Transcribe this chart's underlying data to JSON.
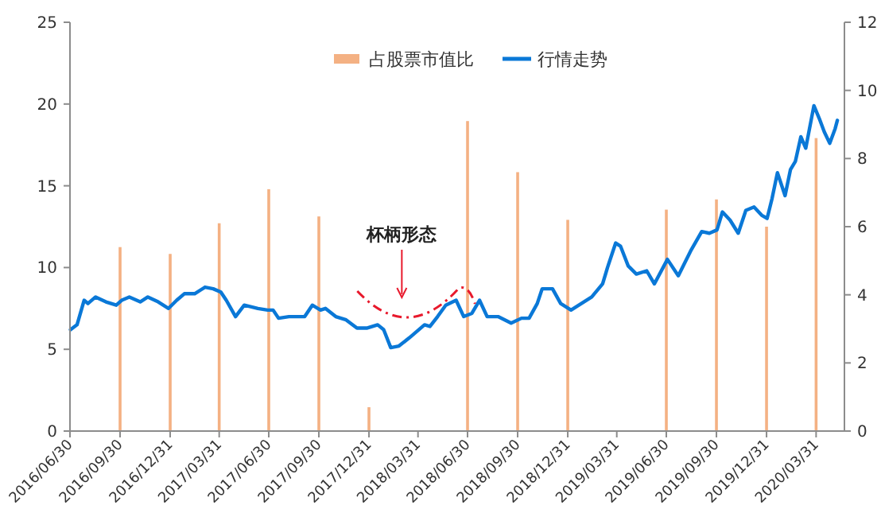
{
  "chart_data": {
    "type": "bar",
    "legend": "top",
    "grid": false,
    "xlim": [
      "2016-06-30",
      "2020-05-22"
    ],
    "xticks": [
      {
        "value": "2016-06-30",
        "label": "2016/06/30"
      },
      {
        "value": "2016-09-30",
        "label": "2016/09/30"
      },
      {
        "value": "2016-12-31",
        "label": "2016/12/31"
      },
      {
        "value": "2017-03-31",
        "label": "2017/03/31"
      },
      {
        "value": "2017-06-30",
        "label": "2017/06/30"
      },
      {
        "value": "2017-09-30",
        "label": "2017/09/30"
      },
      {
        "value": "2017-12-31",
        "label": "2017/12/31"
      },
      {
        "value": "2018-03-31",
        "label": "2018/03/31"
      },
      {
        "value": "2018-06-30",
        "label": "2018/06/30"
      },
      {
        "value": "2018-09-30",
        "label": "2018/09/30"
      },
      {
        "value": "2018-12-31",
        "label": "2018/12/31"
      },
      {
        "value": "2019-03-31",
        "label": "2019/03/31"
      },
      {
        "value": "2019-06-30",
        "label": "2019/06/30"
      },
      {
        "value": "2019-09-30",
        "label": "2019/09/30"
      },
      {
        "value": "2019-12-31",
        "label": "2019/12/31"
      },
      {
        "value": "2020-03-31",
        "label": "2020/03/31"
      }
    ],
    "ylim": [
      0,
      25
    ],
    "yticks": [
      0,
      5,
      10,
      15,
      20,
      25
    ],
    "y2lim": [
      0,
      12
    ],
    "y2ticks": [
      0,
      2,
      4,
      6,
      8,
      10,
      12
    ],
    "annotations": [
      "杯柄形态"
    ],
    "series": [
      {
        "name": "占股票市值比",
        "axis": "y2",
        "color": "#f4b183",
        "x": [
          "2016-09-30",
          "2016-12-31",
          "2017-03-31",
          "2017-06-30",
          "2017-09-30",
          "2017-12-31",
          "2018-03-31",
          "2018-06-30",
          "2018-09-30",
          "2018-12-31",
          "2019-03-31",
          "2019-06-30",
          "2019-09-30",
          "2019-12-31",
          "2020-03-31"
        ],
        "values": [
          5.4,
          5.2,
          6.1,
          7.1,
          6.3,
          0.7,
          null,
          9.1,
          7.6,
          6.2,
          null,
          6.5,
          6.8,
          6.0,
          8.6
        ]
      },
      {
        "name": "行情走势",
        "type": "line",
        "color": "#0a78d7",
        "x": [
          "2016-07-01",
          "2016-07-13",
          "2016-07-26",
          "2016-08-02",
          "2016-08-16",
          "2016-09-04",
          "2016-09-23",
          "2016-10-03",
          "2016-10-17",
          "2016-11-06",
          "2016-11-20",
          "2016-12-09",
          "2016-12-28",
          "2017-01-12",
          "2017-01-26",
          "2017-02-14",
          "2017-03-05",
          "2017-03-20",
          "2017-04-03",
          "2017-04-13",
          "2017-04-30",
          "2017-05-16",
          "2017-06-10",
          "2017-06-28",
          "2017-07-08",
          "2017-07-18",
          "2017-08-06",
          "2017-09-04",
          "2017-09-18",
          "2017-10-03",
          "2017-10-12",
          "2017-10-31",
          "2017-11-19",
          "2017-12-09",
          "2017-12-28",
          "2018-01-16",
          "2018-01-27",
          "2018-02-09",
          "2018-02-24",
          "2018-03-15",
          "2018-03-29",
          "2018-04-12",
          "2018-04-22",
          "2018-05-06",
          "2018-05-21",
          "2018-06-09",
          "2018-06-23",
          "2018-07-08",
          "2018-07-22",
          "2018-08-05",
          "2018-08-25",
          "2018-09-18",
          "2018-10-07",
          "2018-10-21",
          "2018-11-05",
          "2018-11-14",
          "2018-12-03",
          "2018-12-18",
          "2019-01-06",
          "2019-01-25",
          "2019-02-13",
          "2019-03-05",
          "2019-03-14",
          "2019-03-29",
          "2019-04-07",
          "2019-04-21",
          "2019-05-06",
          "2019-05-25",
          "2019-06-08",
          "2019-07-02",
          "2019-07-22",
          "2019-08-15",
          "2019-09-03",
          "2019-09-17",
          "2019-10-01",
          "2019-10-11",
          "2019-10-25",
          "2019-11-09",
          "2019-11-23",
          "2019-12-08",
          "2019-12-22",
          "2020-01-01",
          "2020-01-10",
          "2020-01-20",
          "2020-02-03",
          "2020-02-13",
          "2020-02-22",
          "2020-03-03",
          "2020-03-12",
          "2020-03-27",
          "2020-04-06",
          "2020-04-15",
          "2020-04-25",
          "2020-05-05",
          "2020-05-09"
        ],
        "values": [
          6.2,
          6.5,
          8.0,
          7.8,
          8.2,
          7.9,
          7.7,
          8.0,
          8.2,
          7.9,
          8.2,
          7.9,
          7.5,
          8.0,
          8.4,
          8.4,
          8.8,
          8.7,
          8.5,
          8.0,
          7.0,
          7.7,
          7.5,
          7.4,
          7.4,
          6.9,
          7.0,
          7.0,
          7.7,
          7.4,
          7.5,
          7.0,
          6.8,
          6.3,
          6.3,
          6.5,
          6.2,
          5.1,
          5.2,
          5.7,
          6.1,
          6.5,
          6.4,
          7.0,
          7.7,
          8.0,
          7.0,
          7.2,
          8.0,
          7.0,
          7.0,
          6.6,
          6.9,
          6.9,
          7.8,
          8.7,
          8.7,
          7.8,
          7.4,
          7.8,
          8.2,
          9.0,
          10.0,
          11.5,
          11.3,
          10.1,
          9.6,
          9.8,
          9.0,
          10.5,
          9.5,
          11.1,
          12.2,
          12.1,
          12.3,
          13.4,
          12.9,
          12.1,
          13.5,
          13.7,
          13.2,
          13.0,
          14.2,
          15.8,
          14.4,
          16.0,
          16.5,
          18.0,
          17.3,
          19.9,
          19.1,
          18.3,
          17.6,
          18.5,
          19.0
        ]
      }
    ]
  }
}
